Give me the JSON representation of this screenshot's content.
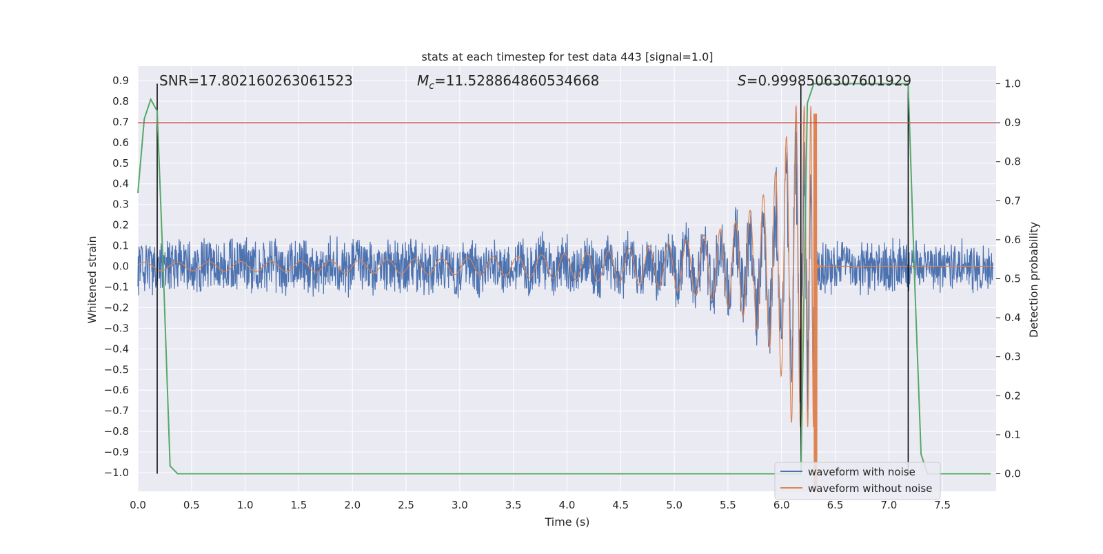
{
  "chart_data": {
    "type": "line",
    "title": "stats at each timestep for test data 443 [signal=1.0]",
    "xlabel": "Time (s)",
    "ylabel_left": "Whitened strain",
    "ylabel_right": "Detection probability",
    "xlim": [
      0.0,
      8.0
    ],
    "ylim_left": [
      -1.09,
      0.97
    ],
    "ylim_right": [
      -0.045,
      1.045
    ],
    "x_ticks": [
      "0.0",
      "0.5",
      "1.0",
      "1.5",
      "2.0",
      "2.5",
      "3.0",
      "3.5",
      "4.0",
      "4.5",
      "5.0",
      "5.5",
      "6.0",
      "6.5",
      "7.0",
      "7.5"
    ],
    "y_left_ticks": [
      "0.9",
      "0.8",
      "0.7",
      "0.6",
      "0.5",
      "0.4",
      "0.3",
      "0.2",
      "0.1",
      "0.0",
      "−0.1",
      "−0.2",
      "−0.3",
      "−0.4",
      "−0.5",
      "−0.6",
      "−0.7",
      "−0.8",
      "−0.9",
      "−1.0"
    ],
    "y_right_ticks": [
      "1.0",
      "0.9",
      "0.8",
      "0.7",
      "0.6",
      "0.5",
      "0.4",
      "0.3",
      "0.2",
      "0.1",
      "0.0"
    ],
    "annotations": {
      "snr": "SNR=17.802160263061523",
      "mc_symbol": "M",
      "mc_sub": "c",
      "mc_value": "=11.528864860534668",
      "s_symbol": "S",
      "s_value": "=0.9998506307601929"
    },
    "threshold_right": 0.9,
    "threshold_color": "#c44e52",
    "vertical_markers_x": [
      0.18,
      6.18,
      7.18
    ],
    "legend": {
      "placement": "bottom-right",
      "entries": [
        {
          "label": "waveform with noise",
          "color": "#4c72b0"
        },
        {
          "label": "waveform without noise",
          "color": "#dd8452"
        }
      ]
    },
    "series": [
      {
        "name": "waveform with noise",
        "color": "#4c72b0",
        "axis": "left",
        "description": "noisy whitened strain, amplitude about ±0.17 rising to about ±0.4 near merger at 6.33 s"
      },
      {
        "name": "waveform without noise",
        "color": "#dd8452",
        "axis": "left",
        "description": "chirp signal, amplitude about 0.02 at t=0 growing to about 0.75 at merger near 6.33 s, ringdown after"
      },
      {
        "name": "detection probability",
        "color": "#55a868",
        "axis": "right",
        "x": [
          0.0,
          0.06,
          0.12,
          0.18,
          0.24,
          0.3,
          0.37,
          0.5,
          6.0,
          6.18,
          6.24,
          6.3,
          6.5,
          7.18,
          7.24,
          7.3,
          7.36,
          7.95
        ],
        "y": [
          0.72,
          0.91,
          0.96,
          0.93,
          0.5,
          0.02,
          0.0,
          0.0,
          0.0,
          0.0,
          0.95,
          1.0,
          1.0,
          1.0,
          0.5,
          0.05,
          0.0,
          0.0
        ]
      }
    ],
    "colors": {
      "background": "#eaeaf2",
      "grid": "#ffffff",
      "marker": "#000000"
    }
  }
}
